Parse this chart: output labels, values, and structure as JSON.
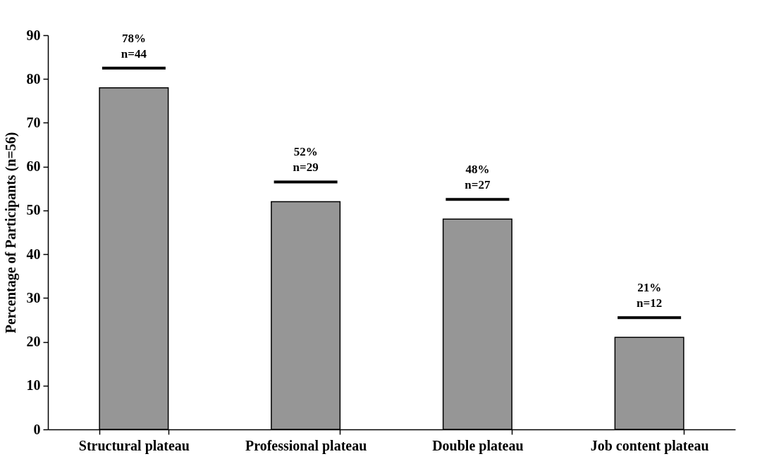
{
  "chart_data": {
    "type": "bar",
    "ylabel": "Percentage of Participants (n=56)",
    "categories": [
      "Structural plateau",
      "Professional plateau",
      "Double plateau",
      "Job content plateau"
    ],
    "values": [
      78,
      52,
      48,
      21
    ],
    "value_labels": [
      "78%\nn=44",
      "52%\nn=29",
      "48%\nn=27",
      "21%\nn=12"
    ],
    "color": "#969696",
    "ylim": [
      0,
      90
    ],
    "yticks": [
      0,
      10,
      20,
      30,
      40,
      50,
      60,
      70,
      80,
      90
    ],
    "grid": false
  }
}
